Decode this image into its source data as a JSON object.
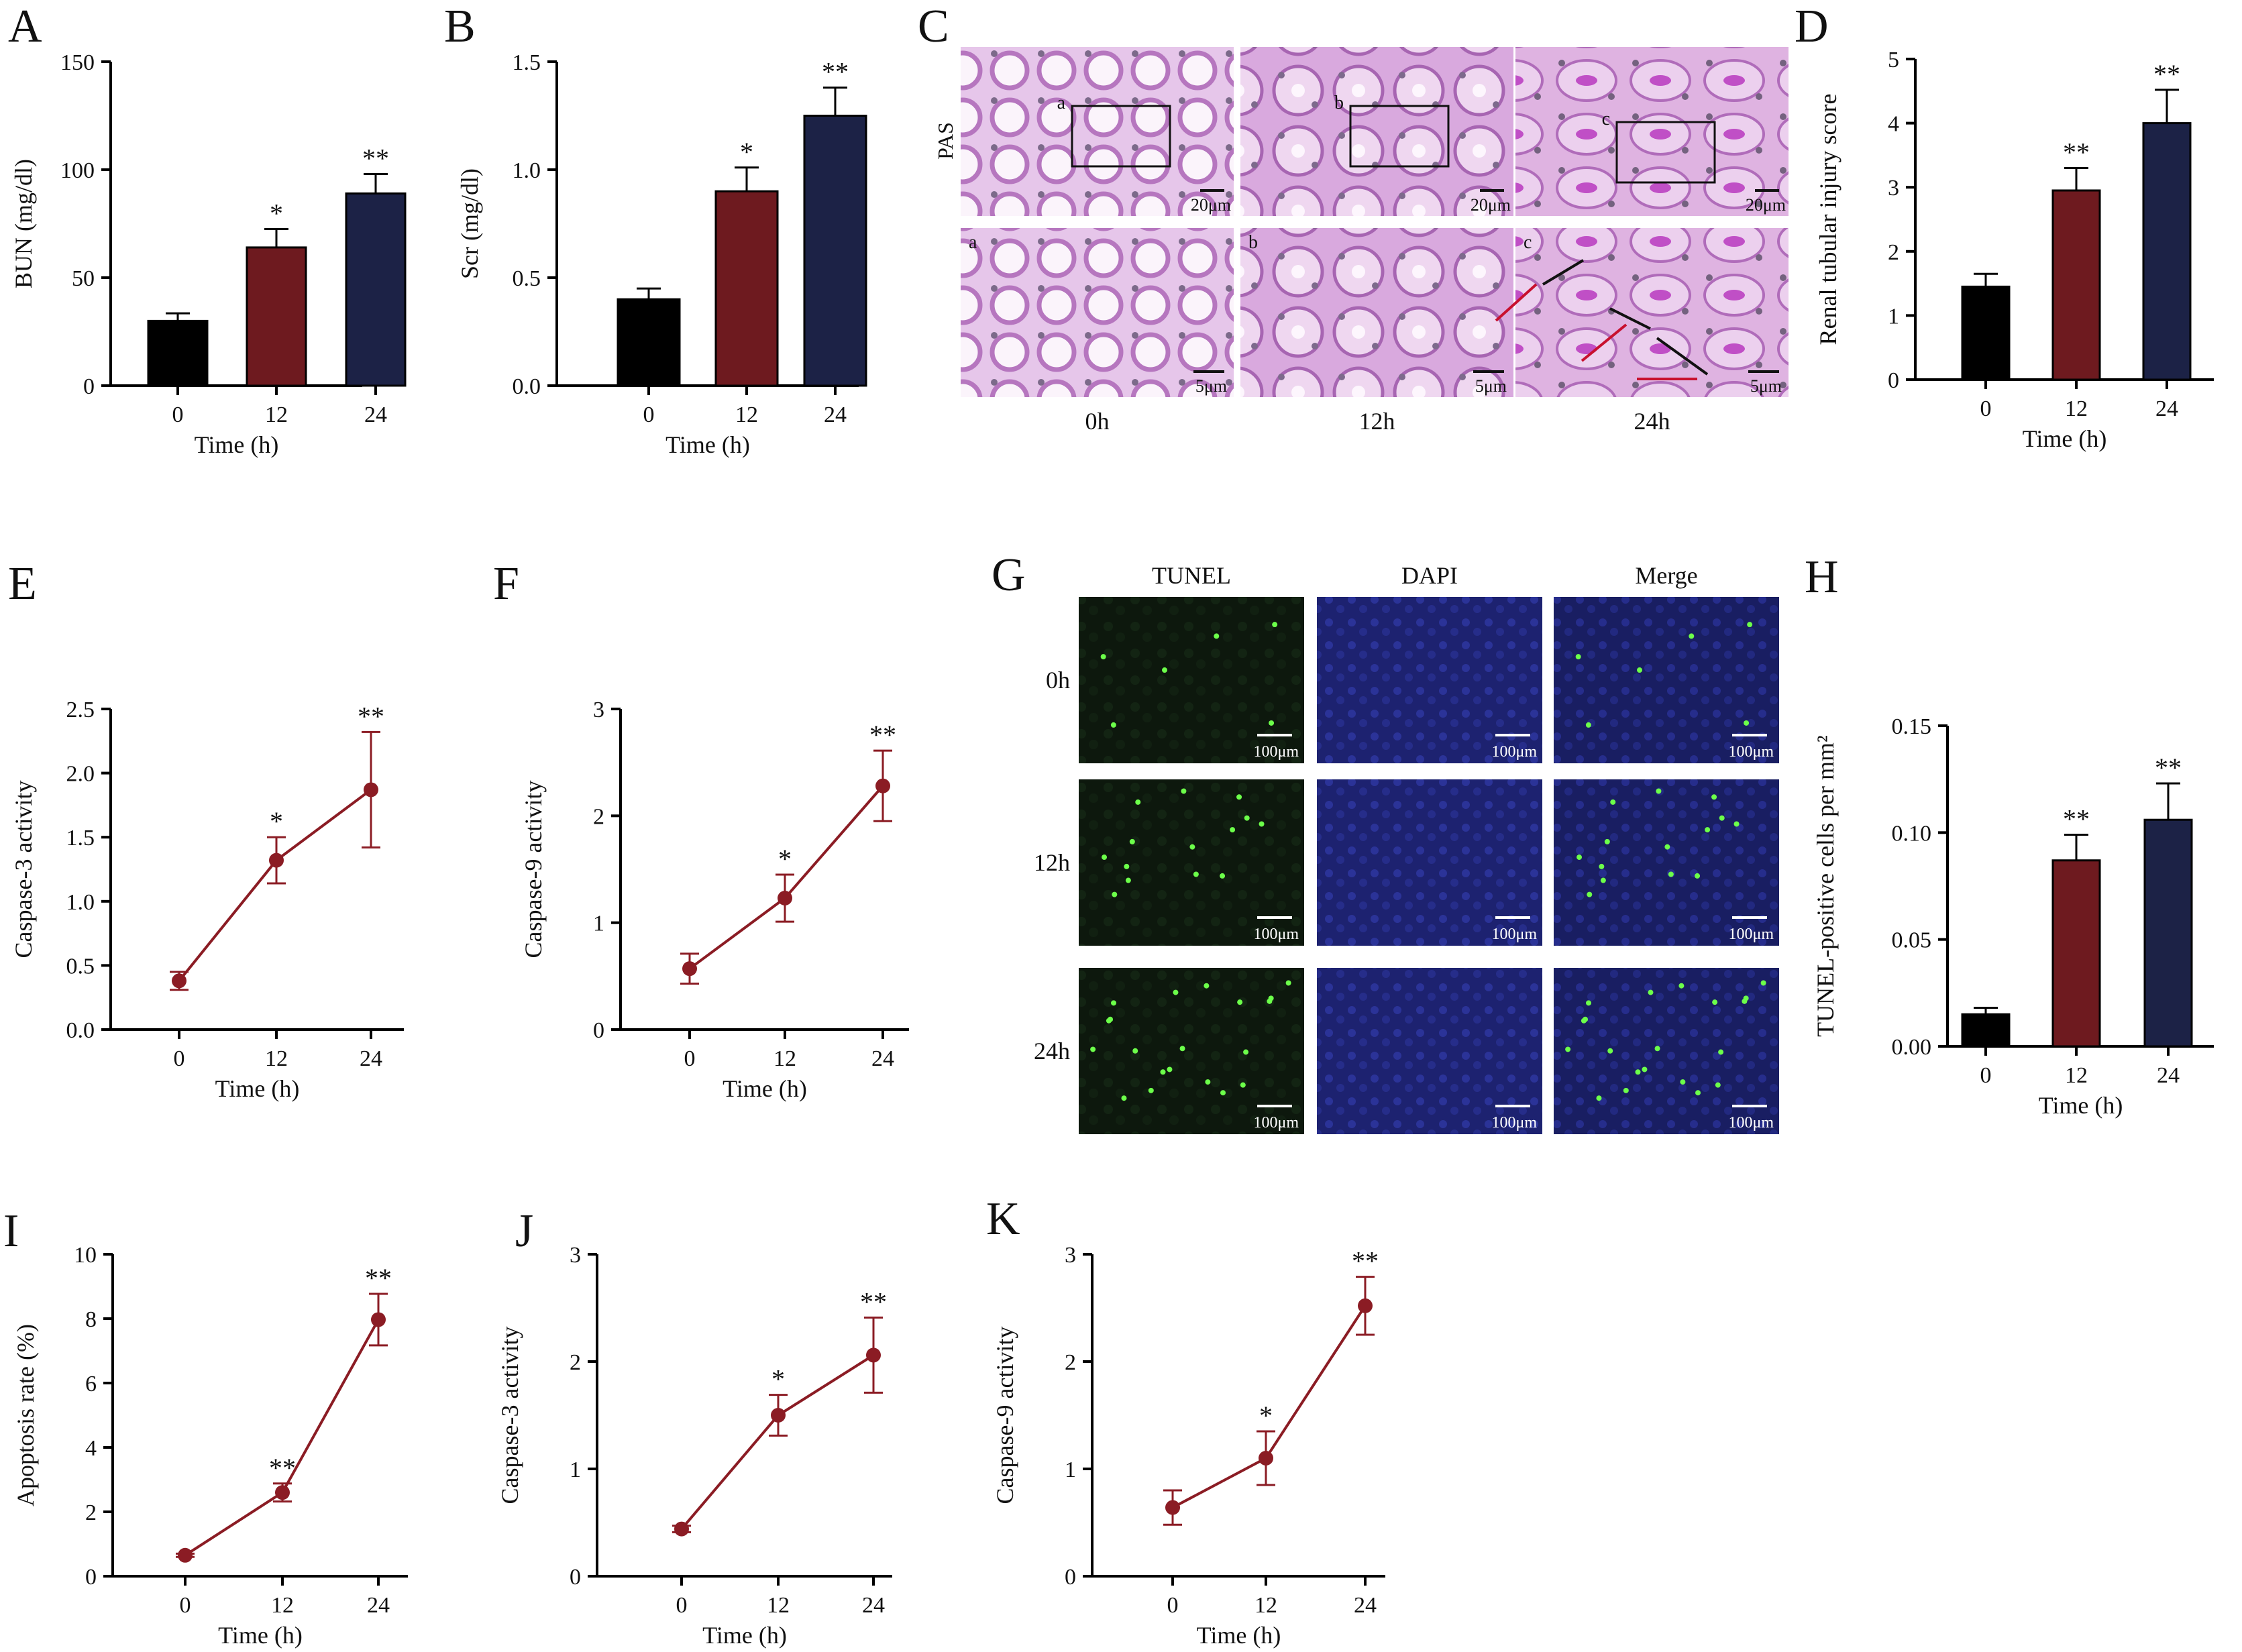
{
  "colors": {
    "bar_0h": "#000000",
    "bar_12h": "#6e1a1f",
    "bar_24h": "#1c2246",
    "line": "#8b1c24",
    "axis": "#000000",
    "pas_stain": "#d79bd9",
    "tunel_green": "#6cff4a",
    "dapi_blue": "#2a2e8c",
    "micro_bg": "#101a10"
  },
  "panel_c": {
    "letter": "C",
    "stain_label": "PAS",
    "time_labels": [
      "0h",
      "12h",
      "24h"
    ],
    "inset_letters": [
      "a",
      "b",
      "c"
    ],
    "scale_top": "20μm",
    "scale_bottom": "5μm"
  },
  "panel_g": {
    "letter": "G",
    "col_headers": [
      "TUNEL",
      "DAPI",
      "Merge"
    ],
    "row_labels": [
      "0h",
      "12h",
      "24h"
    ],
    "scale": "100μm"
  },
  "chart_data": [
    {
      "id": "A",
      "type": "bar",
      "letter": "A",
      "categories": [
        "0",
        "12",
        "24"
      ],
      "values": [
        30,
        64,
        89
      ],
      "errors": [
        3.5,
        8.5,
        9
      ],
      "significance": [
        "",
        "*",
        "**"
      ],
      "ylabel": "BUN (mg/dl)",
      "xlabel": "Time (h)",
      "ylim": [
        0,
        150
      ],
      "yticks": [
        "0",
        "50",
        "100",
        "150"
      ]
    },
    {
      "id": "B",
      "type": "bar",
      "letter": "B",
      "categories": [
        "0",
        "12",
        "24"
      ],
      "values": [
        0.4,
        0.9,
        1.25
      ],
      "errors": [
        0.05,
        0.11,
        0.13
      ],
      "significance": [
        "",
        "*",
        "**"
      ],
      "ylabel": "Scr (mg/dl)",
      "xlabel": "Time (h)",
      "ylim": [
        0,
        1.5
      ],
      "yticks": [
        "0.0",
        "0.5",
        "1.0",
        "1.5"
      ]
    },
    {
      "id": "D",
      "type": "bar",
      "letter": "D",
      "categories": [
        "0",
        "12",
        "24"
      ],
      "values": [
        1.45,
        2.95,
        4.0
      ],
      "errors": [
        0.2,
        0.35,
        0.52
      ],
      "significance": [
        "",
        "**",
        "**"
      ],
      "ylabel": "Renal tubular injury score",
      "xlabel": "Time (h)",
      "ylim": [
        0,
        5
      ],
      "yticks": [
        "0",
        "1",
        "2",
        "3",
        "4",
        "5"
      ]
    },
    {
      "id": "E",
      "type": "line",
      "letter": "E",
      "categories": [
        "0",
        "12",
        "24"
      ],
      "values": [
        0.38,
        1.32,
        1.87
      ],
      "errors": [
        0.07,
        0.18,
        0.45
      ],
      "significance": [
        "",
        "*",
        "**"
      ],
      "ylabel": "Caspase-3 activity",
      "xlabel": "Time (h)",
      "ylim": [
        0,
        2.5
      ],
      "yticks": [
        "0.0",
        "0.5",
        "1.0",
        "1.5",
        "2.0",
        "2.5"
      ]
    },
    {
      "id": "F",
      "type": "line",
      "letter": "F",
      "categories": [
        "0",
        "12",
        "24"
      ],
      "values": [
        0.57,
        1.23,
        2.28
      ],
      "errors": [
        0.14,
        0.22,
        0.33
      ],
      "significance": [
        "",
        "*",
        "**"
      ],
      "ylabel": "Caspase-9 activity",
      "xlabel": "Time (h)",
      "ylim": [
        0,
        3
      ],
      "yticks": [
        "0",
        "1",
        "2",
        "3"
      ]
    },
    {
      "id": "H",
      "type": "bar",
      "letter": "H",
      "categories": [
        "0",
        "12",
        "24"
      ],
      "values": [
        0.015,
        0.087,
        0.106
      ],
      "errors": [
        0.003,
        0.012,
        0.017
      ],
      "significance": [
        "",
        "**",
        "**"
      ],
      "ylabel": "TUNEL-positive cells per mm²",
      "xlabel": "Time (h)",
      "ylim": [
        0,
        0.15
      ],
      "yticks": [
        "0.00",
        "0.05",
        "0.10",
        "0.15"
      ]
    },
    {
      "id": "I",
      "type": "line",
      "letter": "I",
      "categories": [
        "0",
        "12",
        "24"
      ],
      "values": [
        0.65,
        2.6,
        7.97
      ],
      "errors": [
        0.05,
        0.28,
        0.8
      ],
      "significance": [
        "",
        "**",
        "**"
      ],
      "ylabel": "Apoptosis rate (%)",
      "xlabel": "Time (h)",
      "ylim": [
        0,
        10
      ],
      "yticks": [
        "0",
        "2",
        "4",
        "6",
        "8",
        "10"
      ]
    },
    {
      "id": "J",
      "type": "line",
      "letter": "J",
      "categories": [
        "0",
        "12",
        "24"
      ],
      "values": [
        0.44,
        1.5,
        2.06
      ],
      "errors": [
        0.03,
        0.19,
        0.35
      ],
      "significance": [
        "",
        "*",
        "**"
      ],
      "ylabel": "Caspase-3 activity",
      "xlabel": "Time (h)",
      "ylim": [
        0,
        3
      ],
      "yticks": [
        "0",
        "1",
        "2",
        "3"
      ]
    },
    {
      "id": "K",
      "type": "line",
      "letter": "K",
      "categories": [
        "0",
        "12",
        "24"
      ],
      "values": [
        0.64,
        1.1,
        2.52
      ],
      "errors": [
        0.16,
        0.25,
        0.27
      ],
      "significance": [
        "",
        "*",
        "**"
      ],
      "ylabel": "Caspase-9 activity",
      "xlabel": "Time (h)",
      "ylim": [
        0,
        3
      ],
      "yticks": [
        "0",
        "1",
        "2",
        "3"
      ]
    }
  ]
}
